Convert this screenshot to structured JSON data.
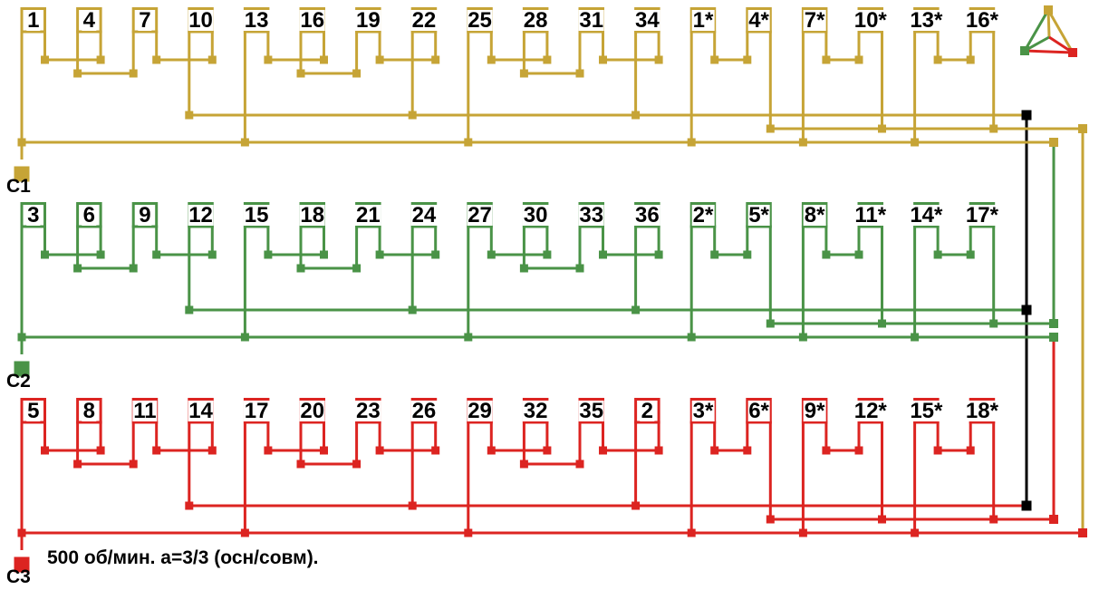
{
  "diagram": {
    "caption": "500 об/мин. a=3/3 (осн/совм).",
    "neutral_color": "#000000",
    "legend_icon": "three-phase-triangle",
    "rows": [
      {
        "terminal": "C1",
        "color": "#C6A436",
        "coils": [
          "1",
          "4",
          "7",
          "10",
          "13",
          "16",
          "19",
          "22",
          "25",
          "28",
          "31",
          "34",
          "1*",
          "4*",
          "7*",
          "10*",
          "13*",
          "16*"
        ]
      },
      {
        "terminal": "C2",
        "color": "#4A9347",
        "coils": [
          "3",
          "6",
          "9",
          "12",
          "15",
          "18",
          "21",
          "24",
          "27",
          "30",
          "33",
          "36",
          "2*",
          "5*",
          "8*",
          "11*",
          "14*",
          "17*"
        ]
      },
      {
        "terminal": "C3",
        "color": "#DC2421",
        "coils": [
          "5",
          "8",
          "11",
          "14",
          "17",
          "20",
          "23",
          "26",
          "29",
          "32",
          "35",
          "2",
          "3*",
          "6*",
          "9*",
          "12*",
          "15*",
          "18*"
        ]
      }
    ]
  }
}
